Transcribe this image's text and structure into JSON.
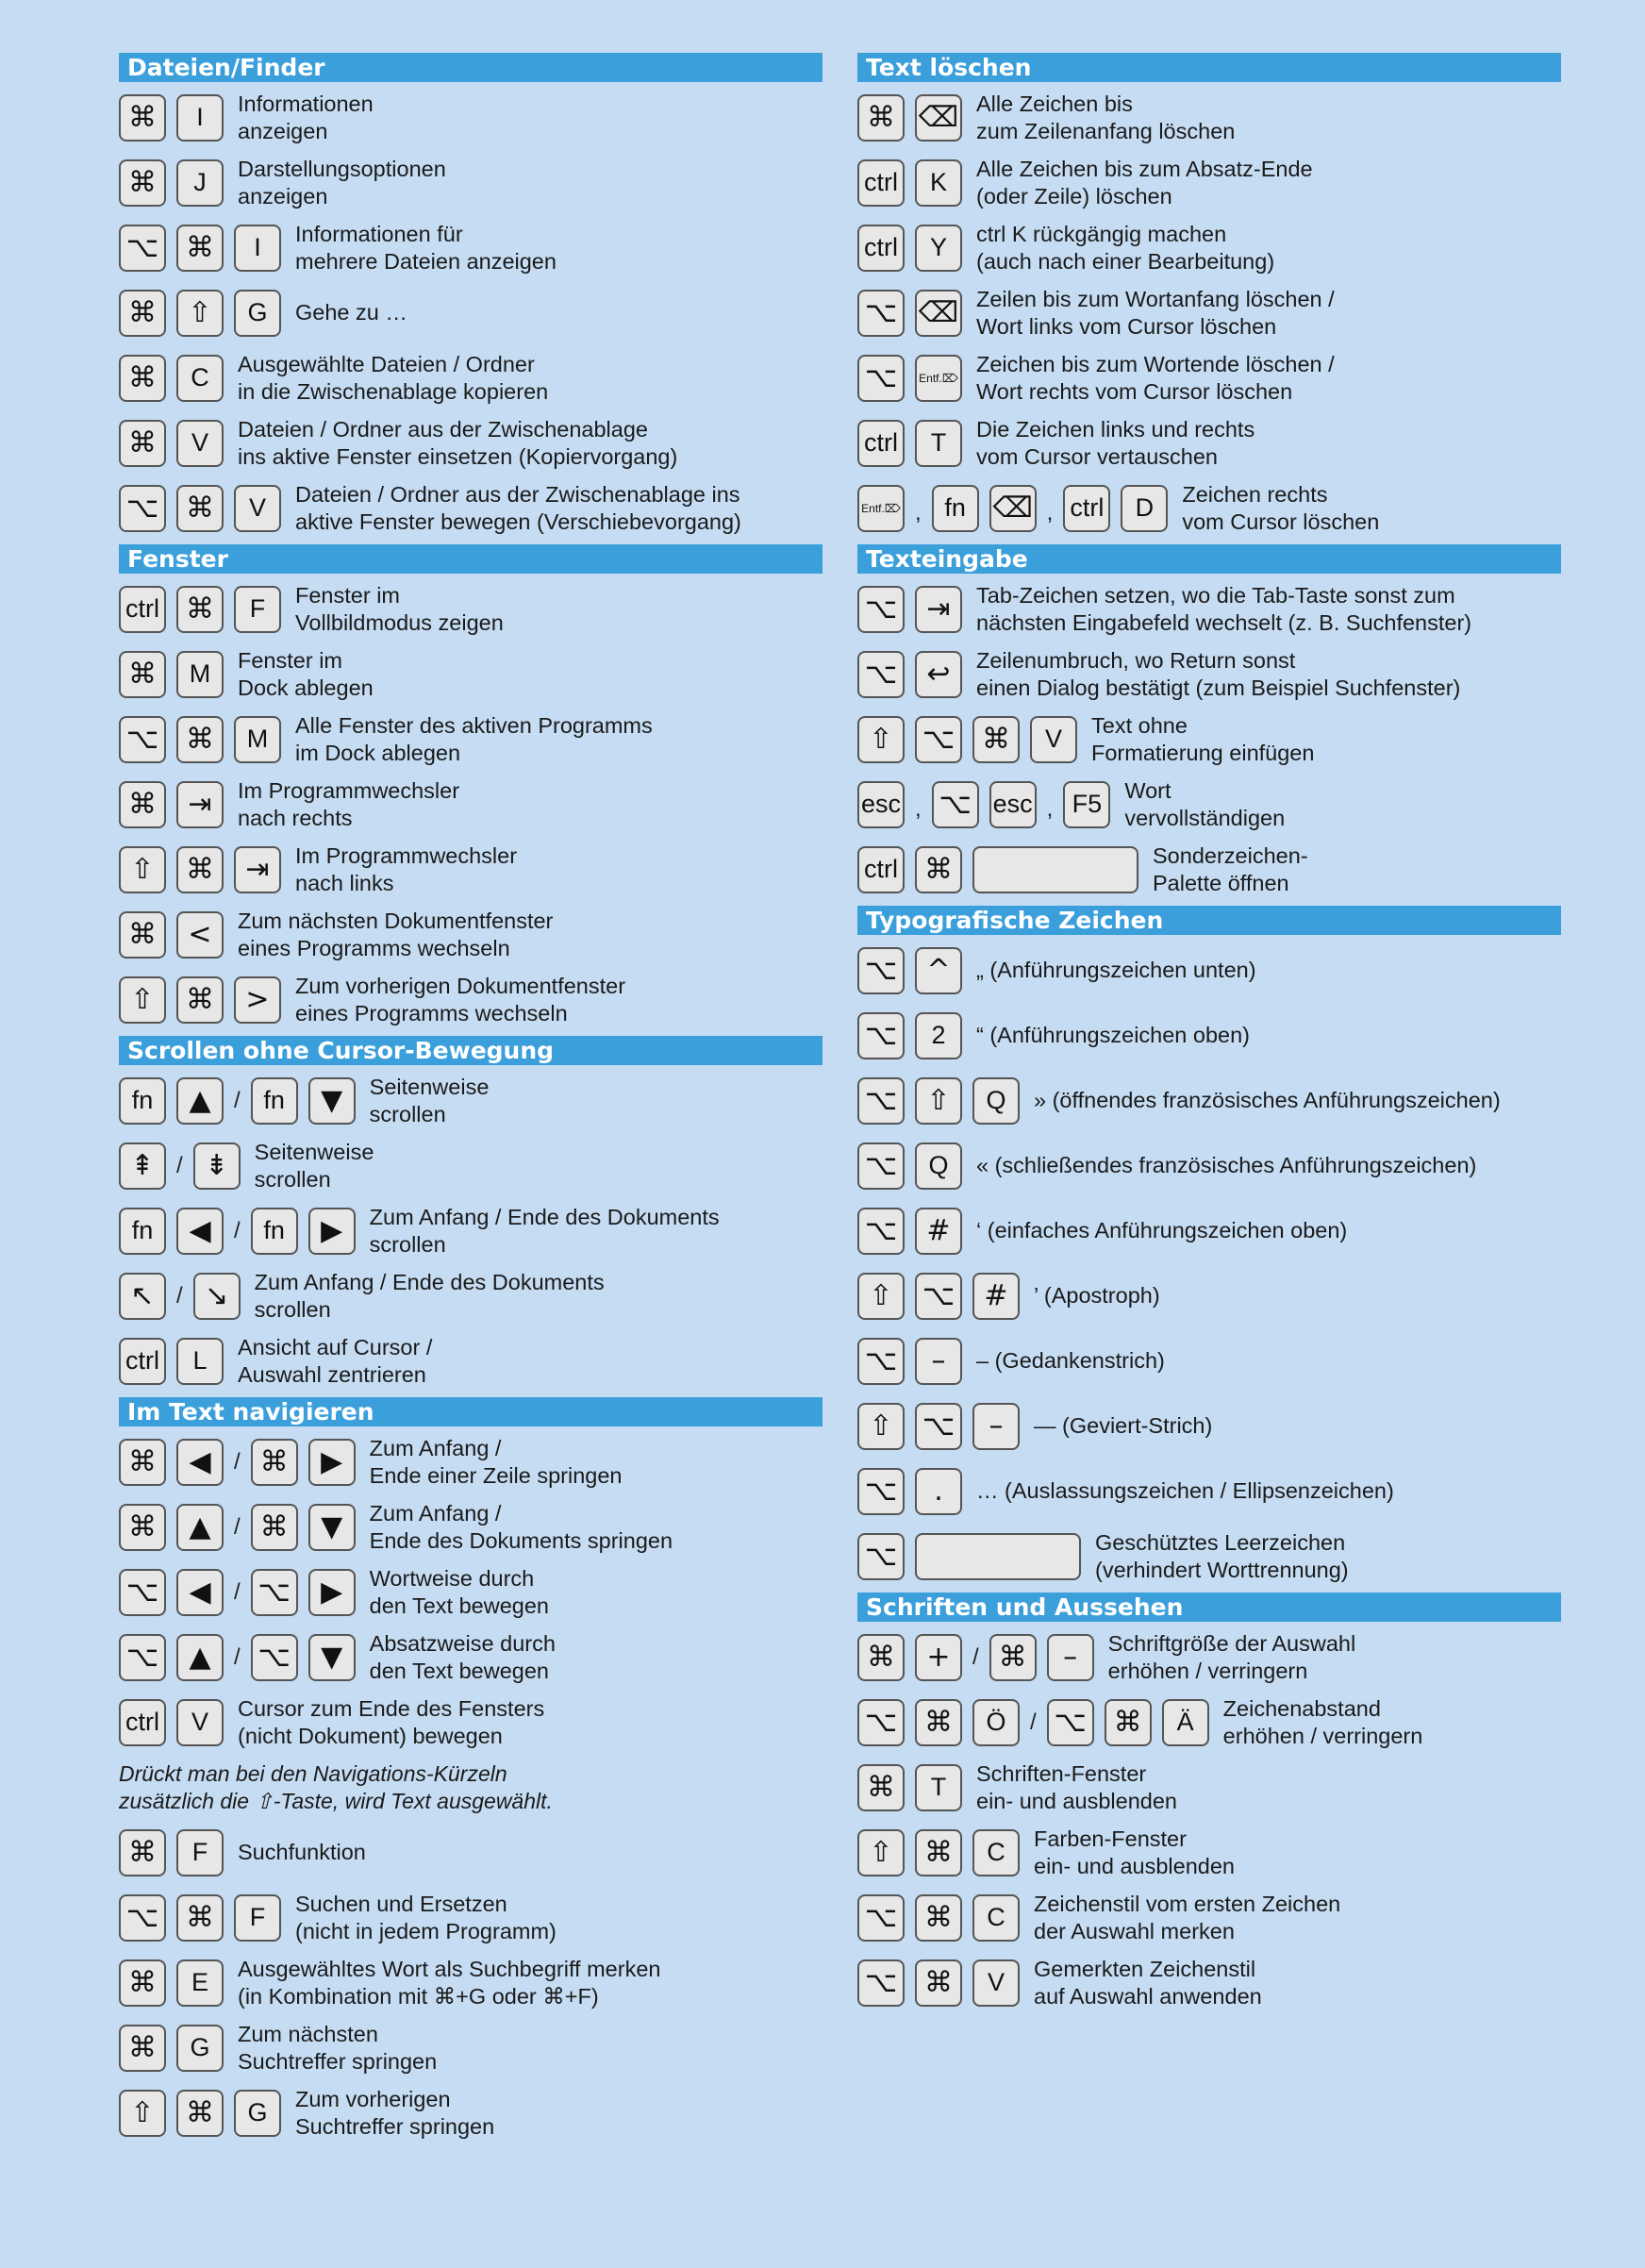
{
  "colors": {
    "background": "#c5dcf2",
    "header": "#3a9fdb",
    "key": "#e7e7e7"
  },
  "columns": [
    {
      "sections": [
        {
          "title": "Dateien/Finder",
          "rows": [
            {
              "keys": [
                "⌘",
                "I"
              ],
              "desc": [
                "Informationen",
                "anzeigen"
              ]
            },
            {
              "keys": [
                "⌘",
                "J"
              ],
              "desc": [
                "Darstellungsoptionen",
                "anzeigen"
              ]
            },
            {
              "keys": [
                "⌥",
                "⌘",
                "I"
              ],
              "desc": [
                "Informationen für",
                "mehrere Dateien anzeigen"
              ]
            },
            {
              "keys": [
                "⌘",
                "⇧",
                "G"
              ],
              "desc": [
                "",
                "Gehe zu …"
              ]
            },
            {
              "keys": [
                "⌘",
                "C"
              ],
              "desc": [
                "Ausgewählte Dateien / Ordner",
                "in die Zwischenablage kopieren"
              ]
            },
            {
              "keys": [
                "⌘",
                "V"
              ],
              "desc": [
                "Dateien / Ordner aus der Zwischenablage",
                "ins aktive Fenster einsetzen (Kopiervorgang)"
              ]
            },
            {
              "keys": [
                "⌥",
                "⌘",
                "V"
              ],
              "desc": [
                "Dateien / Ordner aus der Zwischenablage ins",
                "aktive Fenster bewegen (Verschiebevorgang)"
              ]
            }
          ]
        },
        {
          "title": "Fenster",
          "rows": [
            {
              "keys": [
                "ctrl",
                "⌘",
                "F"
              ],
              "desc": [
                "Fenster im",
                "Vollbildmodus zeigen"
              ]
            },
            {
              "keys": [
                "⌘",
                "M"
              ],
              "desc": [
                "Fenster im",
                "Dock ablegen"
              ]
            },
            {
              "keys": [
                "⌥",
                "⌘",
                "M"
              ],
              "desc": [
                "Alle Fenster des aktiven Programms",
                "im Dock ablegen"
              ]
            },
            {
              "keys": [
                "⌘",
                "⇥"
              ],
              "desc": [
                "Im Programmwechsler",
                "nach rechts"
              ]
            },
            {
              "keys": [
                "⇧",
                "⌘",
                "⇥"
              ],
              "desc": [
                "Im Programmwechsler",
                "nach links"
              ]
            },
            {
              "keys": [
                "⌘",
                "<"
              ],
              "desc": [
                "Zum nächsten Dokumentfenster",
                "eines Programms wechseln"
              ]
            },
            {
              "keys": [
                "⇧",
                "⌘",
                ">"
              ],
              "desc": [
                "Zum vorherigen Dokumentfenster",
                "eines Programms wechseln"
              ]
            }
          ]
        },
        {
          "title": "Scrollen ohne Cursor-Bewegung",
          "rows": [
            {
              "keys": [
                "fn",
                "▲",
                "/",
                "fn",
                "▼"
              ],
              "desc": [
                "Seitenweise",
                "scrollen"
              ]
            },
            {
              "keys": [
                "⇞",
                "/",
                "⇟"
              ],
              "desc": [
                "Seitenweise",
                "scrollen"
              ]
            },
            {
              "keys": [
                "fn",
                "◀",
                "/",
                "fn",
                "▶"
              ],
              "desc": [
                "Zum Anfang / Ende des Dokuments",
                "scrollen"
              ]
            },
            {
              "keys": [
                "↖",
                "/",
                "↘"
              ],
              "desc": [
                "Zum Anfang / Ende des Dokuments",
                "scrollen"
              ]
            },
            {
              "keys": [
                "ctrl",
                "L"
              ],
              "desc": [
                "Ansicht auf Cursor /",
                "Auswahl zentrieren"
              ]
            }
          ]
        },
        {
          "title": "Im Text navigieren",
          "rows": [
            {
              "keys": [
                "⌘",
                "◀",
                "/",
                "⌘",
                "▶"
              ],
              "desc": [
                "Zum Anfang /",
                "Ende einer Zeile springen"
              ]
            },
            {
              "keys": [
                "⌘",
                "▲",
                "/",
                "⌘",
                "▼"
              ],
              "desc": [
                "Zum Anfang /",
                "Ende des Dokuments springen"
              ]
            },
            {
              "keys": [
                "⌥",
                "◀",
                "/",
                "⌥",
                "▶"
              ],
              "desc": [
                "Wortweise durch",
                "den Text bewegen"
              ]
            },
            {
              "keys": [
                "⌥",
                "▲",
                "/",
                "⌥",
                "▼"
              ],
              "desc": [
                "Absatzweise durch",
                "den Text bewegen"
              ]
            },
            {
              "keys": [
                "ctrl",
                "V"
              ],
              "desc": [
                "Cursor zum Ende des Fensters",
                "(nicht Dokument) bewegen"
              ]
            },
            {
              "note": [
                "Drückt man bei den Navigations-Kürzeln",
                "zusätzlich die ⇧-Taste, wird Text ausgewählt."
              ]
            },
            {
              "keys": [
                "⌘",
                "F"
              ],
              "desc": [
                "Suchfunktion"
              ]
            },
            {
              "keys": [
                "⌥",
                "⌘",
                "F"
              ],
              "desc": [
                "Suchen und Ersetzen",
                "(nicht in jedem Programm)"
              ]
            },
            {
              "keys": [
                "⌘",
                "E"
              ],
              "desc": [
                "Ausgewähltes Wort als Suchbegriff merken",
                "(in Kombination mit ⌘+G oder ⌘+F)"
              ]
            },
            {
              "keys": [
                "⌘",
                "G"
              ],
              "desc": [
                "Zum nächsten",
                "Suchtreffer springen"
              ]
            },
            {
              "keys": [
                "⇧",
                "⌘",
                "G"
              ],
              "desc": [
                "Zum vorherigen",
                "Suchtreffer springen"
              ]
            }
          ]
        }
      ]
    },
    {
      "sections": [
        {
          "title": "Text löschen",
          "rows": [
            {
              "keys": [
                "⌘",
                "⌫"
              ],
              "desc": [
                "Alle Zeichen bis",
                "zum Zeilenanfang löschen"
              ]
            },
            {
              "keys": [
                "ctrl",
                "K"
              ],
              "desc": [
                "Alle Zeichen bis zum Absatz-Ende",
                "(oder Zeile) löschen"
              ]
            },
            {
              "keys": [
                "ctrl",
                "Y"
              ],
              "desc": [
                "ctrl K rückgängig machen",
                "(auch nach einer Bearbeitung)"
              ]
            },
            {
              "keys": [
                "⌥",
                "⌫"
              ],
              "desc": [
                "Zeilen bis zum Wortanfang löschen /",
                "Wort links vom Cursor löschen"
              ]
            },
            {
              "keys": [
                "⌥",
                "Entf.⌦"
              ],
              "desc": [
                "Zeichen bis zum Wortende löschen /",
                "Wort rechts vom Cursor löschen"
              ]
            },
            {
              "keys": [
                "ctrl",
                "T"
              ],
              "desc": [
                "Die Zeichen links und rechts",
                "vom Cursor vertauschen"
              ]
            },
            {
              "keys": [
                "Entf.⌦",
                ",",
                "fn",
                "⌫",
                ",",
                "ctrl",
                "D"
              ],
              "desc": [
                "Zeichen rechts",
                "vom Cursor löschen"
              ]
            }
          ]
        },
        {
          "title": "Texteingabe",
          "rows": [
            {
              "keys": [
                "⌥",
                "⇥"
              ],
              "desc": [
                "Tab-Zeichen setzen, wo die Tab-Taste sonst zum",
                "nächsten Eingabefeld wechselt (z. B. Suchfenster)"
              ]
            },
            {
              "keys": [
                "⌥",
                "↩"
              ],
              "desc": [
                "Zeilenumbruch, wo Return sonst",
                "einen Dialog bestätigt (zum Beispiel Suchfenster)"
              ]
            },
            {
              "keys": [
                "⇧",
                "⌥",
                "⌘",
                "V"
              ],
              "desc": [
                "Text ohne",
                "Formatierung einfügen"
              ]
            },
            {
              "keys": [
                "esc",
                ",",
                "⌥",
                "esc",
                ",",
                "F5"
              ],
              "desc": [
                "Wort",
                "vervollständigen"
              ]
            },
            {
              "keys": [
                "ctrl",
                "⌘",
                ""
              ],
              "desc": [
                "Sonderzeichen-",
                "Palette öffnen"
              ]
            }
          ]
        },
        {
          "title": "Typografische Zeichen",
          "rows": [
            {
              "keys": [
                "⌥",
                "^"
              ],
              "desc": [
                "„ (Anführungszeichen unten)"
              ]
            },
            {
              "keys": [
                "⌥",
                "2"
              ],
              "desc": [
                "“ (Anführungszeichen oben)"
              ]
            },
            {
              "keys": [
                "⌥",
                "⇧",
                "Q"
              ],
              "desc": [
                "» (öffnendes französisches Anführungszeichen)"
              ]
            },
            {
              "keys": [
                "⌥",
                "Q"
              ],
              "desc": [
                "« (schließendes französisches Anführungszeichen)"
              ]
            },
            {
              "keys": [
                "⌥",
                "#"
              ],
              "desc": [
                "‘ (einfaches Anführungszeichen oben)"
              ]
            },
            {
              "keys": [
                "⇧",
                "⌥",
                "#"
              ],
              "desc": [
                "’ (Apostroph)"
              ]
            },
            {
              "keys": [
                "⌥",
                "–"
              ],
              "desc": [
                "– (Gedankenstrich)"
              ]
            },
            {
              "keys": [
                "⇧",
                "⌥",
                "–"
              ],
              "desc": [
                "— (Geviert-Strich)"
              ]
            },
            {
              "keys": [
                "⌥",
                "."
              ],
              "desc": [
                "… (Auslassungszeichen / Ellipsenzeichen)"
              ]
            },
            {
              "keys": [
                "⌥",
                ""
              ],
              "desc": [
                "Geschütztes Leerzeichen",
                "(verhindert Worttrennung)"
              ]
            }
          ]
        },
        {
          "title": "Schriften und Aussehen",
          "rows": [
            {
              "keys": [
                "⌘",
                "+",
                "/",
                "⌘",
                "–"
              ],
              "desc": [
                "Schriftgröße der Auswahl",
                "erhöhen / verringern"
              ]
            },
            {
              "keys": [
                "⌥",
                "⌘",
                "Ö",
                "/",
                "⌥",
                "⌘",
                "Ä"
              ],
              "desc": [
                "Zeichenabstand",
                "erhöhen / verringern"
              ]
            },
            {
              "keys": [
                "⌘",
                "T"
              ],
              "desc": [
                "Schriften-Fenster",
                "ein- und ausblenden"
              ]
            },
            {
              "keys": [
                "⇧",
                "⌘",
                "C"
              ],
              "desc": [
                "Farben-Fenster",
                "ein- und ausblenden"
              ]
            },
            {
              "keys": [
                "⌥",
                "⌘",
                "C"
              ],
              "desc": [
                "Zeichenstil vom ersten Zeichen",
                "der Auswahl merken"
              ]
            },
            {
              "keys": [
                "⌥",
                "⌘",
                "V"
              ],
              "desc": [
                "Gemerkten Zeichenstil",
                "auf Auswahl anwenden"
              ]
            }
          ]
        }
      ]
    }
  ]
}
